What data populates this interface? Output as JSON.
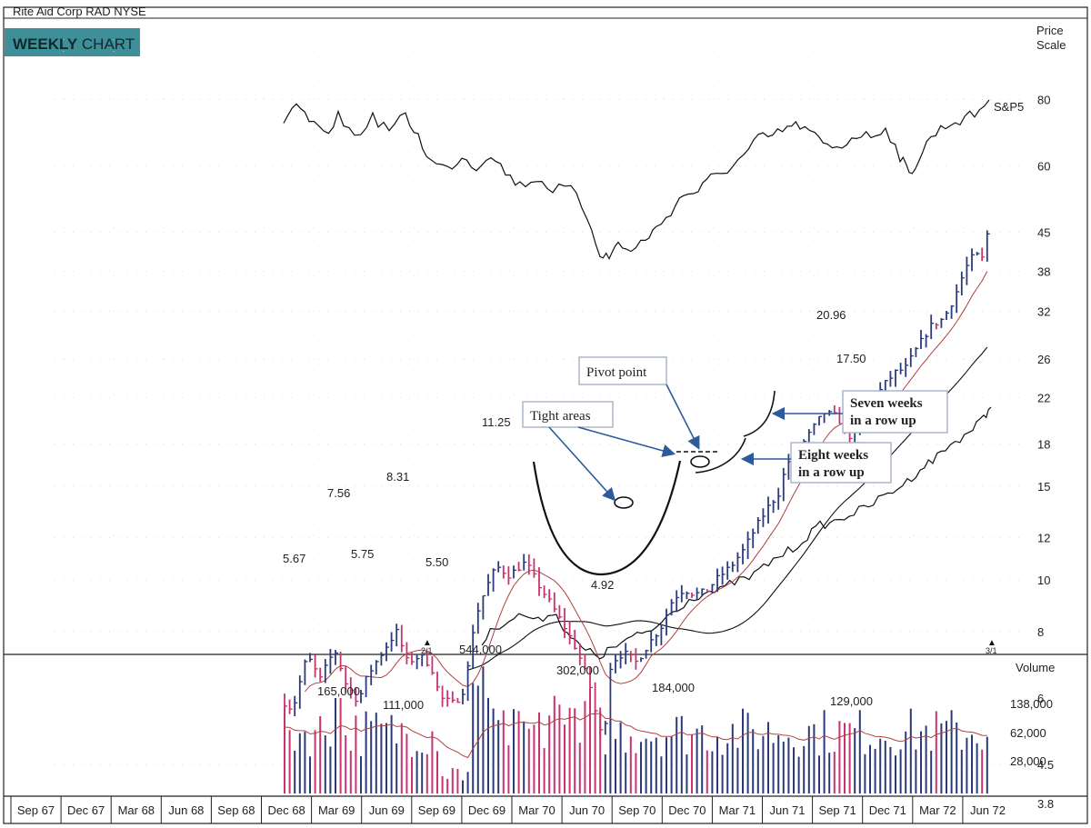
{
  "header": {
    "title": "Rite Aid Corp  RAD  NYSE",
    "badge_bold": "WEEKLY",
    "badge_rest": " CHART"
  },
  "price_scale": {
    "title_line1": "Price",
    "title_line2": "Scale",
    "ticks": [
      "80",
      "60",
      "45",
      "38",
      "32",
      "26",
      "22",
      "18",
      "15",
      "12",
      "10",
      "8",
      "6",
      "4.5",
      "3.8"
    ]
  },
  "volume_scale": {
    "title": "Volume",
    "ticks": [
      "138,000",
      "62,000",
      "28,000"
    ]
  },
  "x_axis": {
    "labels": [
      "Sep 67",
      "Dec 67",
      "Mar 68",
      "Jun 68",
      "Sep 68",
      "Dec 68",
      "Mar 69",
      "Jun 69",
      "Sep 69",
      "Dec 69",
      "Mar 70",
      "Jun 70",
      "Sep 70",
      "Dec 70",
      "Mar 71",
      "Jun 71",
      "Sep 71",
      "Dec 71",
      "Mar 72",
      "Jun 72"
    ]
  },
  "markers": [
    "2/1",
    "3/1"
  ],
  "series_label": "S&P5",
  "price_labels": [
    "5.67",
    "7.56",
    "5.75",
    "8.31",
    "5.50",
    "11.25",
    "4.92",
    "20.96",
    "17.50"
  ],
  "volume_labels": [
    "544,000",
    "165,000",
    "111,000",
    "302,000",
    "184,000",
    "129,000"
  ],
  "callouts": {
    "pivot": "Pivot point",
    "tight": "Tight areas",
    "seven_l1": "Seven weeks",
    "seven_l2": "in a row up",
    "eight_l1": "Eight weeks",
    "eight_l2": "in a row up"
  },
  "colors": {
    "up_bar": "#2b3a7a",
    "down_bar": "#c8336f",
    "badge_bg": "#3f8f99",
    "ma_short": "#b04040",
    "callout_border": "#aab6c8",
    "arrow": "#2d5a9a"
  },
  "chart_data": {
    "type": "line",
    "title": "Rite Aid Corp  RAD  NYSE",
    "xlabel": "",
    "ylabel": "Price Scale",
    "x": [
      "Sep 67",
      "Dec 67",
      "Mar 68",
      "Jun 68",
      "Sep 68",
      "Dec 68",
      "Mar 69",
      "Jun 69",
      "Sep 69",
      "Dec 69",
      "Mar 70",
      "Jun 70",
      "Sep 70",
      "Dec 70",
      "Mar 71",
      "Jun 71",
      "Sep 71",
      "Dec 71",
      "Mar 72",
      "Jun 72"
    ],
    "price_key_points": [
      {
        "label": "5.67",
        "x": "Dec 68",
        "y": 5.67
      },
      {
        "label": "7.56",
        "x": "Mar 69",
        "y": 7.56
      },
      {
        "label": "5.75",
        "x": "Jun 69",
        "y": 5.75
      },
      {
        "label": "8.31",
        "x": "Jun 69",
        "y": 8.31
      },
      {
        "label": "5.50",
        "x": "Sep 69",
        "y": 5.5
      },
      {
        "label": "11.25",
        "x": "Dec 69",
        "y": 11.25
      },
      {
        "label": "4.92",
        "x": "Jun 70",
        "y": 4.92
      },
      {
        "label": "20.96",
        "x": "Jun 71",
        "y": 20.96
      },
      {
        "label": "17.50",
        "x": "Sep 71",
        "y": 17.5
      }
    ],
    "volume_key_points": [
      {
        "label": "165,000",
        "x": "Mar 69",
        "y": 165000
      },
      {
        "label": "111,000",
        "x": "Jun 69",
        "y": 111000
      },
      {
        "label": "544,000",
        "x": "Dec 69",
        "y": 544000
      },
      {
        "label": "302,000",
        "x": "Jun 70",
        "y": 302000
      },
      {
        "label": "184,000",
        "x": "Sep 70",
        "y": 184000
      },
      {
        "label": "129,000",
        "x": "Sep 71",
        "y": 129000
      }
    ],
    "price_scale": "log",
    "ylim": [
      3.8,
      80
    ],
    "grid": true,
    "legend": "none"
  }
}
